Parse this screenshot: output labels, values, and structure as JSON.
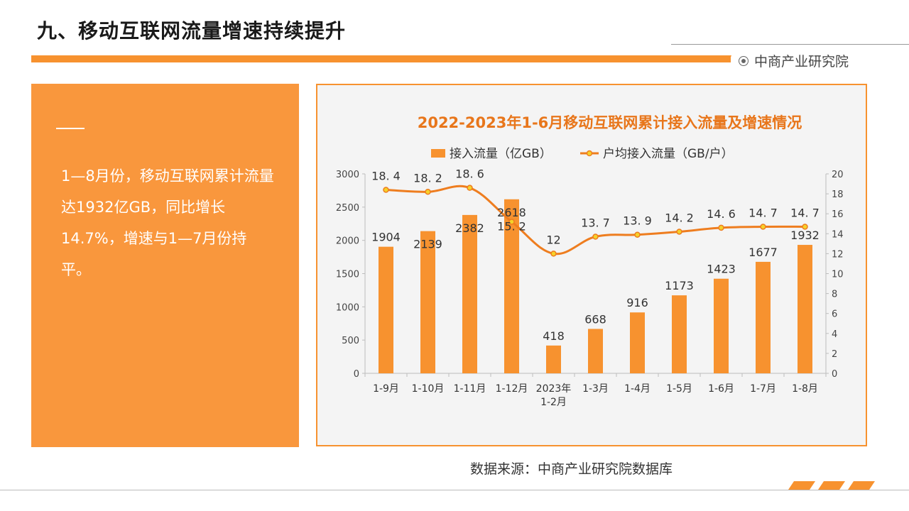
{
  "page": {
    "title": "九、移动互联网流量增速持续提升",
    "brand": "中商产业研究院",
    "summary": "1—8月份，移动互联网累计流量达1932亿GB，同比增长14.7%，增速与1—7月份持平。",
    "source": "数据来源：中商产业研究院数据库"
  },
  "colors": {
    "accent": "#f7922f",
    "panel": "#f9973d",
    "line": "#ee7d1f",
    "marker": "#f5d22a",
    "title_text": "#e8761b"
  },
  "chart_data": {
    "type": "bar",
    "title": "2022-2023年1-6月移动互联网累计接入流量及增速情况",
    "categories": [
      "1-9月",
      "1-10月",
      "1-11月",
      "1-12月",
      "2023年\n1-2月",
      "1-3月",
      "1-4月",
      "1-5月",
      "1-6月",
      "1-7月",
      "1-8月"
    ],
    "series": [
      {
        "name": "接入流量（亿GB）",
        "type": "bar",
        "axis": "left",
        "values": [
          1904,
          2139,
          2382,
          2618,
          418,
          668,
          916,
          1173,
          1423,
          1677,
          1932
        ],
        "labels": [
          "1904",
          "2139",
          "2382",
          "2618",
          "418",
          "668",
          "916",
          "1173",
          "1423",
          "1677",
          "1932"
        ]
      },
      {
        "name": "户均接入流量（GB/户）",
        "type": "line",
        "axis": "right",
        "values": [
          18.4,
          18.2,
          18.6,
          15.2,
          12,
          13.7,
          13.9,
          14.2,
          14.6,
          14.7,
          14.7
        ],
        "labels": [
          "18. 4",
          "18. 2",
          "18. 6",
          "15. 2",
          "12",
          "13. 7",
          "13. 9",
          "14. 2",
          "14. 6",
          "14. 7",
          "14. 7"
        ]
      }
    ],
    "y_left": {
      "min": 0,
      "max": 3000,
      "ticks": [
        "0",
        "500",
        "1000",
        "1500",
        "2000",
        "2500",
        "3000"
      ]
    },
    "y_right": {
      "min": 0,
      "max": 20,
      "ticks": [
        "0",
        "2",
        "4",
        "6",
        "8",
        "10",
        "12",
        "14",
        "16",
        "18",
        "20"
      ]
    },
    "legend_position": "top",
    "grid": false
  }
}
